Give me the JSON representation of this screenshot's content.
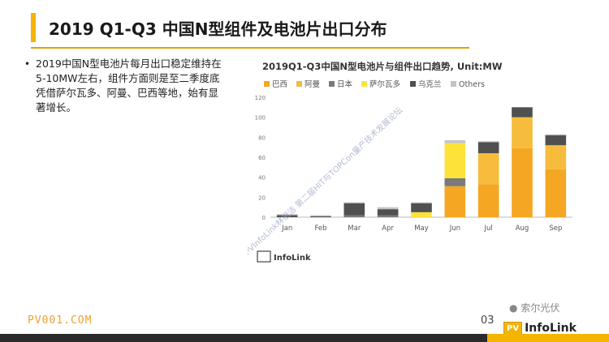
{
  "slide": {
    "title": "2019 Q1-Q3 中国N型组件及电池片出口分布",
    "bullet_symbol": "•",
    "bullets": [
      "2019中国N型电池片每月出口稳定维持在5-10MW左右，组件方面则是至二季度底凭借萨尔瓦多、阿曼、巴西等地，始有显著增长。"
    ],
    "footer_url": "PV001.COM",
    "page_number": "03",
    "wechat_label": "索尔光伏",
    "brand_mark": "PV",
    "brand_name": "InfoLink",
    "chart_brand": "InfoLink",
    "watermark_text": "PVInfoLink林祖洁 第二届HIT与TOPCon量产技术发展论坛",
    "colors": {
      "accent": "#f5b400",
      "footer": "#2b2b2b"
    }
  },
  "chart_data": {
    "type": "bar",
    "stacked": true,
    "title": "2019Q1-Q3中国N型电池片与组件出口趋势, Unit:MW",
    "categories": [
      "Jan",
      "Feb",
      "Mar",
      "Apr",
      "May",
      "Jun",
      "Jul",
      "Aug",
      "Sep"
    ],
    "ylim": [
      0,
      120
    ],
    "yticks": [
      0,
      20,
      40,
      60,
      80,
      100,
      120
    ],
    "series": [
      {
        "name": "巴西",
        "color": "#f5a623",
        "values": [
          0,
          0,
          0,
          0,
          0,
          31,
          33,
          69,
          48
        ]
      },
      {
        "name": "阿曼",
        "color": "#f7bc3c",
        "values": [
          0,
          0,
          0,
          0,
          0,
          0,
          31,
          31,
          24
        ]
      },
      {
        "name": "日本",
        "color": "#7a7a7a",
        "values": [
          0,
          0,
          2,
          2,
          0,
          8,
          0,
          0,
          0
        ]
      },
      {
        "name": "萨尔瓦多",
        "color": "#fde23a",
        "values": [
          0,
          0,
          0,
          0,
          5,
          35,
          0,
          0,
          0
        ]
      },
      {
        "name": "乌克兰",
        "color": "#505050",
        "values": [
          2,
          1,
          12,
          6,
          9,
          0,
          11,
          10,
          10
        ]
      },
      {
        "name": "Others",
        "color": "#c4c4c4",
        "values": [
          1,
          1,
          1,
          2,
          1,
          3,
          1,
          0,
          1
        ]
      }
    ]
  }
}
